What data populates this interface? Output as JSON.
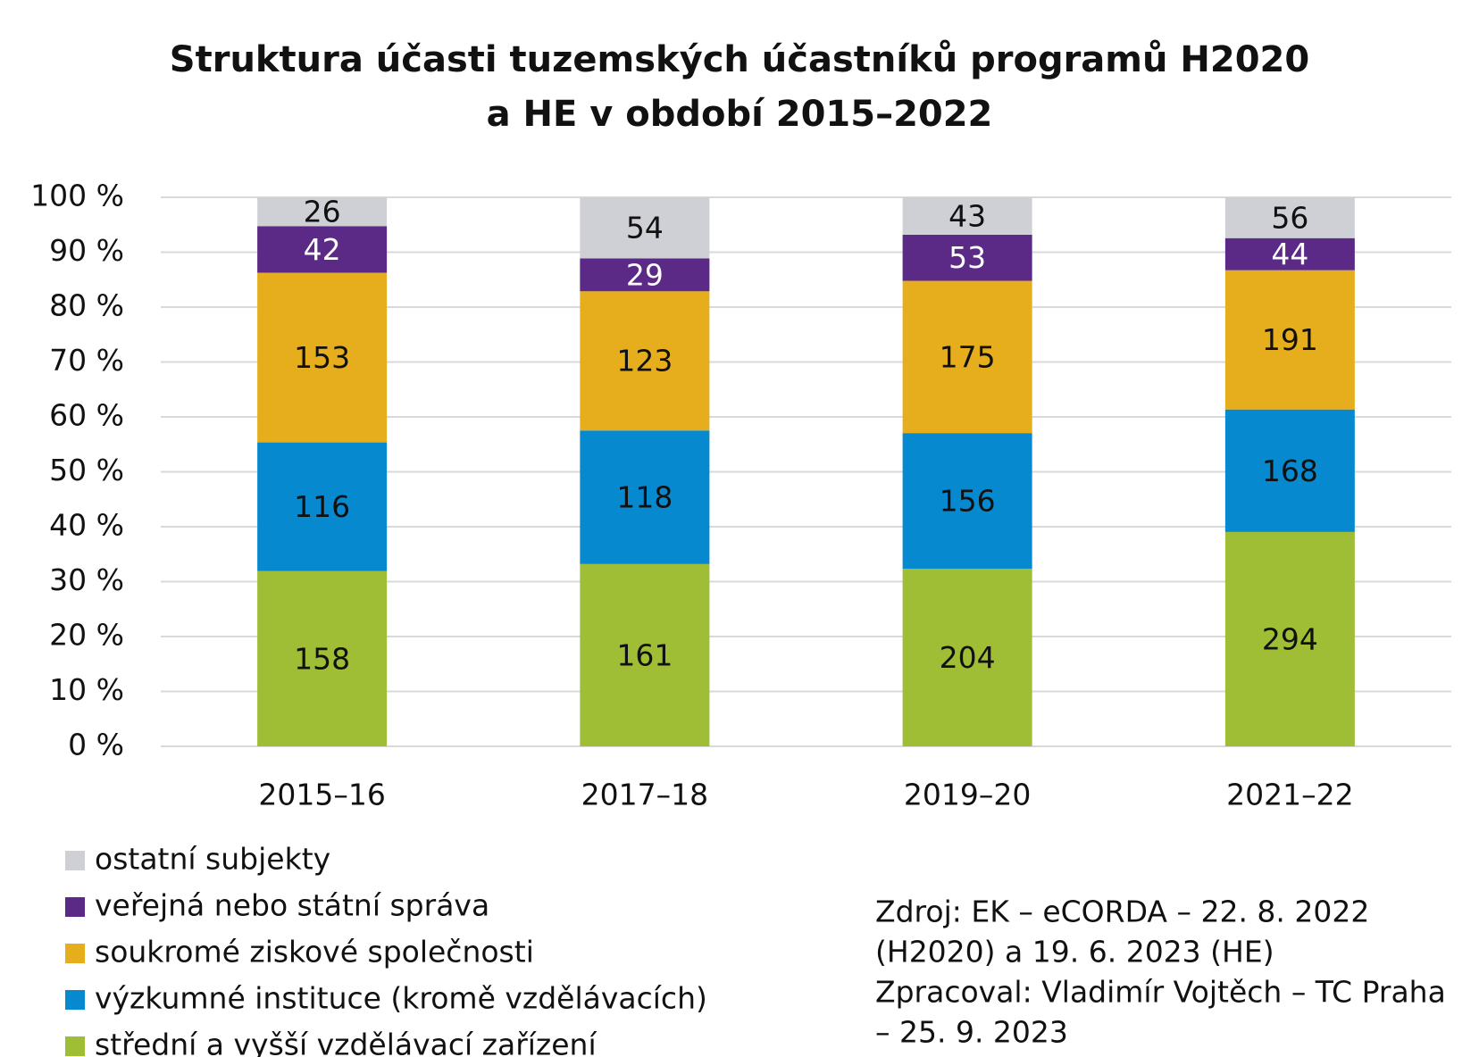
{
  "chart_data": {
    "type": "bar",
    "stacking": "percent",
    "title": [
      "Struktura účasti tuzemských účastníků programů H2020",
      "a HE v období 2015–2022"
    ],
    "categories": [
      "2015–16",
      "2017–18",
      "2019–20",
      "2021–22"
    ],
    "series": [
      {
        "name": "střední a vyšší vzdělávací zařízení",
        "color": "#9fbd35",
        "values": [
          158,
          161,
          204,
          294
        ]
      },
      {
        "name": "výzkumné instituce (kromě vzdělávacích)",
        "color": "#0789d0",
        "values": [
          116,
          118,
          156,
          168
        ]
      },
      {
        "name": "soukromé ziskové společnosti",
        "color": "#e6ae1c",
        "values": [
          153,
          123,
          175,
          191
        ]
      },
      {
        "name": "veřejná nebo státní správa",
        "color": "#5b2a86",
        "values": [
          42,
          29,
          53,
          44
        ]
      },
      {
        "name": "ostatní subjekty",
        "color": "#cfcfd6",
        "values": [
          26,
          54,
          43,
          56
        ]
      }
    ],
    "ylim": [
      0,
      100
    ],
    "yticks": [
      {
        "value": 0,
        "label": "0 %"
      },
      {
        "value": 10,
        "label": "10 %"
      },
      {
        "value": 20,
        "label": "20 %"
      },
      {
        "value": 30,
        "label": "30 %"
      },
      {
        "value": 40,
        "label": "40 %"
      },
      {
        "value": 50,
        "label": "50 %"
      },
      {
        "value": 60,
        "label": "60 %"
      },
      {
        "value": 70,
        "label": "70 %"
      },
      {
        "value": 80,
        "label": "80 %"
      },
      {
        "value": 90,
        "label": "90 %"
      },
      {
        "value": 100,
        "label": "100 %"
      }
    ],
    "grid": true,
    "source": [
      "Zdroj: EK – eCORDA – 22. 8. 2022",
      "(H2020) a 19. 6. 2023 (HE)",
      "Zpracoval: Vladimír Vojtěch – TC Praha",
      "– 25. 9. 2023"
    ]
  }
}
